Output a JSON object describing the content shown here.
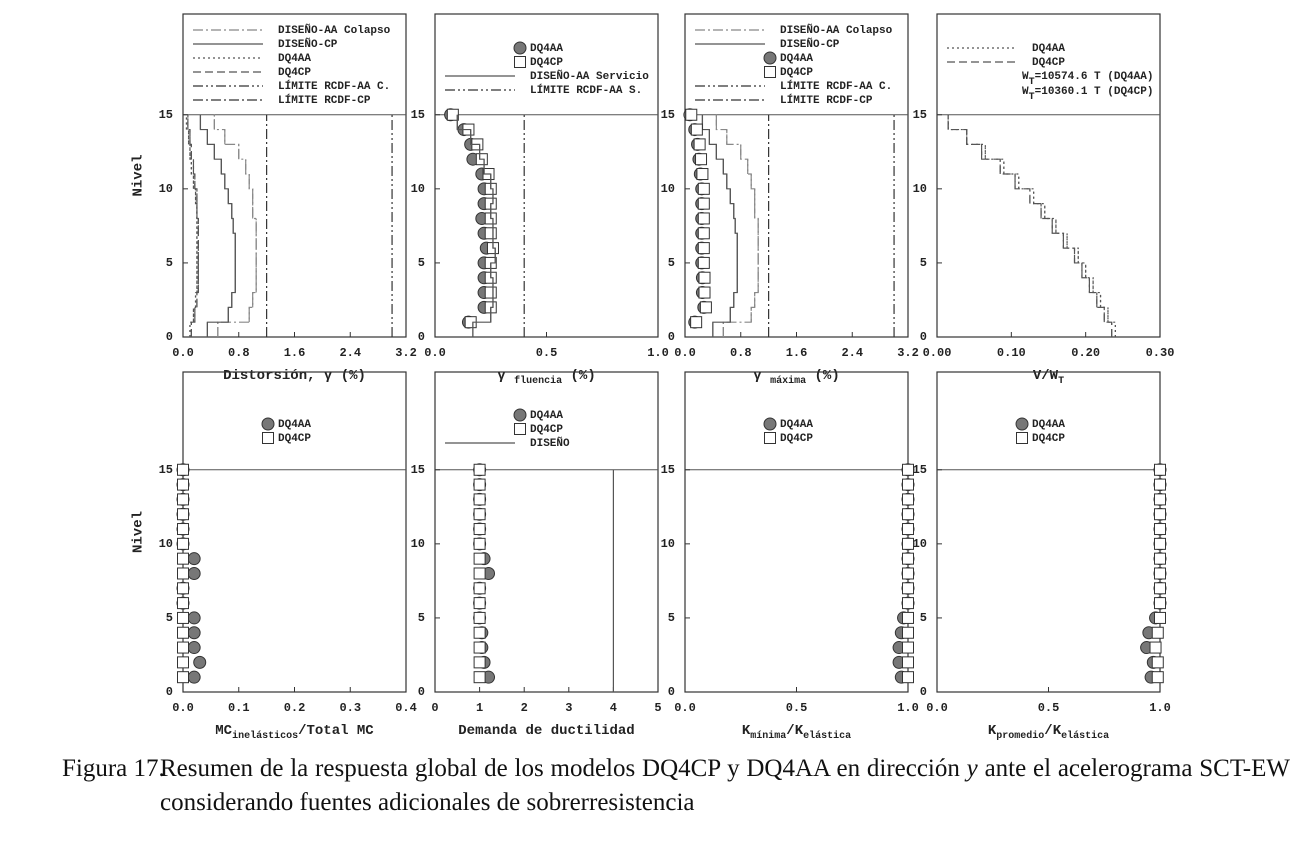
{
  "chart_data": [
    {
      "type": "profile",
      "ylabel": "Nivel",
      "roof": 15,
      "levels": [
        1,
        2,
        3,
        4,
        5,
        6,
        7,
        8,
        9,
        10,
        11,
        12,
        13,
        14,
        15
      ],
      "xlim": [
        0,
        3.2
      ],
      "xticks": [
        {
          "value": 0,
          "label": "0.0"
        },
        0.8,
        1.6,
        2.4,
        3.2
      ],
      "ylim": [
        0,
        21.8
      ],
      "yticks": [
        0,
        5,
        10,
        15
      ],
      "xlabel": [
        {
          "text": "Distorsión, γ (%)"
        }
      ],
      "series": [
        {
          "name": "DISEÑO-AA Colapso",
          "kind": "step",
          "line_style": "dashdot",
          "color": "#888888",
          "values": [
            0.5,
            0.95,
            1.0,
            1.05,
            1.05,
            1.05,
            1.05,
            1.05,
            1.0,
            1.0,
            0.95,
            0.9,
            0.8,
            0.6,
            0.45
          ]
        },
        {
          "name": "DISEÑO-CP",
          "kind": "step",
          "line_style": "solid",
          "color": "#555555",
          "values": [
            0.35,
            0.65,
            0.7,
            0.75,
            0.75,
            0.75,
            0.75,
            0.72,
            0.7,
            0.65,
            0.6,
            0.55,
            0.45,
            0.35,
            0.25
          ]
        },
        {
          "name": "DQ4AA",
          "kind": "step",
          "line_style": "dotted",
          "color": "#555555",
          "values": [
            0.1,
            0.15,
            0.18,
            0.2,
            0.2,
            0.2,
            0.2,
            0.2,
            0.2,
            0.18,
            0.15,
            0.12,
            0.1,
            0.08,
            0.05
          ]
        },
        {
          "name": "DQ4CP",
          "kind": "step",
          "line_style": "dashed",
          "color": "#555555",
          "values": [
            0.12,
            0.17,
            0.2,
            0.22,
            0.22,
            0.22,
            0.22,
            0.22,
            0.2,
            0.2,
            0.17,
            0.15,
            0.12,
            0.1,
            0.07
          ]
        },
        {
          "name": "LÍMITE RCDF-AA C.",
          "kind": "vline",
          "line_style": "dashdotdot",
          "color": "#333333",
          "value": 3.0
        },
        {
          "name": "LÍMITE RCDF-CP",
          "kind": "vline",
          "line_style": "dashdot",
          "color": "#333333",
          "value": 1.2
        }
      ]
    },
    {
      "type": "profile",
      "roof": 15,
      "levels": [
        1,
        2,
        3,
        4,
        5,
        6,
        7,
        8,
        9,
        10,
        11,
        12,
        13,
        14,
        15
      ],
      "xlim": [
        0,
        1
      ],
      "xticks": [
        {
          "value": 0,
          "label": "0.0"
        },
        0.5,
        {
          "value": 1,
          "label": "1.0"
        }
      ],
      "ylim": [
        0,
        21.8
      ],
      "yticks": [
        0,
        5,
        10,
        15
      ],
      "xlabel": [
        {
          "text": "γ "
        },
        {
          "text": "fluencia",
          "sub": true
        },
        {
          "text": " (%)"
        }
      ],
      "series": [
        {
          "name": "DQ4AA",
          "kind": "circle",
          "color": "#777777",
          "values": [
            0.15,
            0.22,
            0.22,
            0.22,
            0.22,
            0.23,
            0.22,
            0.21,
            0.22,
            0.22,
            0.21,
            0.17,
            0.16,
            0.13,
            0.07
          ]
        },
        {
          "name": "DQ4CP",
          "kind": "square",
          "color": "#ffffff",
          "values": [
            0.16,
            0.25,
            0.25,
            0.25,
            0.25,
            0.26,
            0.25,
            0.25,
            0.25,
            0.25,
            0.24,
            0.21,
            0.19,
            0.15,
            0.08
          ]
        },
        {
          "name": "DISEÑO-AA Servicio",
          "kind": "step",
          "line_style": "solid",
          "color": "#555555",
          "values": [
            0.17,
            0.25,
            0.26,
            0.26,
            0.25,
            0.27,
            0.26,
            0.26,
            0.25,
            0.26,
            0.25,
            0.22,
            0.2,
            0.16,
            0.1
          ]
        },
        {
          "name": "LÍMITE RCDF-AA S.",
          "kind": "vline",
          "line_style": "dashdotdot",
          "color": "#333333",
          "value": 0.4
        }
      ]
    },
    {
      "type": "profile",
      "roof": 15,
      "levels": [
        1,
        2,
        3,
        4,
        5,
        6,
        7,
        8,
        9,
        10,
        11,
        12,
        13,
        14,
        15
      ],
      "xlim": [
        0,
        3.2
      ],
      "xticks": [
        {
          "value": 0,
          "label": "0.0"
        },
        0.8,
        1.6,
        2.4,
        3.2
      ],
      "ylim": [
        0,
        21.8
      ],
      "yticks": [
        0,
        5,
        10,
        15
      ],
      "xlabel": [
        {
          "text": "γ "
        },
        {
          "text": "máxima",
          "sub": true
        },
        {
          "text": " (%)"
        }
      ],
      "series": [
        {
          "name": "DISEÑO-AA Colapso",
          "kind": "step",
          "line_style": "dashdot",
          "color": "#888888",
          "values": [
            0.55,
            0.95,
            1.0,
            1.05,
            1.05,
            1.05,
            1.05,
            1.05,
            1.0,
            1.0,
            0.95,
            0.9,
            0.8,
            0.6,
            0.45
          ]
        },
        {
          "name": "DISEÑO-CP",
          "kind": "step",
          "line_style": "solid",
          "color": "#555555",
          "values": [
            0.4,
            0.65,
            0.7,
            0.75,
            0.75,
            0.75,
            0.75,
            0.72,
            0.7,
            0.65,
            0.6,
            0.55,
            0.45,
            0.35,
            0.25
          ]
        },
        {
          "name": "DQ4AA",
          "kind": "circle",
          "color": "#777777",
          "values": [
            0.14,
            0.27,
            0.25,
            0.25,
            0.24,
            0.24,
            0.24,
            0.24,
            0.24,
            0.24,
            0.22,
            0.2,
            0.18,
            0.14,
            0.07
          ]
        },
        {
          "name": "DQ4CP",
          "kind": "square",
          "color": "#ffffff",
          "values": [
            0.16,
            0.3,
            0.28,
            0.28,
            0.27,
            0.27,
            0.27,
            0.27,
            0.27,
            0.27,
            0.25,
            0.23,
            0.21,
            0.17,
            0.09
          ]
        },
        {
          "name": "LÍMITE RCDF-AA C.",
          "kind": "vline",
          "line_style": "dashdotdot",
          "color": "#333333",
          "value": 3.0
        },
        {
          "name": "LÍMITE RCDF-CP",
          "kind": "vline",
          "line_style": "dashdot",
          "color": "#333333",
          "value": 1.2
        }
      ]
    },
    {
      "type": "profile",
      "roof": 15,
      "levels": [
        1,
        2,
        3,
        4,
        5,
        6,
        7,
        8,
        9,
        10,
        11,
        12,
        13,
        14,
        15
      ],
      "xlim": [
        0,
        0.3
      ],
      "xticks": [
        {
          "value": 0,
          "label": "0.00"
        },
        {
          "value": 0.1,
          "label": "0.10"
        },
        {
          "value": 0.2,
          "label": "0.20"
        },
        {
          "value": 0.3,
          "label": "0.30"
        }
      ],
      "ylim": [
        0,
        21.8
      ],
      "yticks": [
        0,
        5,
        10,
        15
      ],
      "xlabel": [
        {
          "text": "V/W"
        },
        {
          "text": "T",
          "sub": true
        }
      ],
      "annotations": [
        [
          {
            "text": "W"
          },
          {
            "text": "T",
            "sub": true
          },
          {
            "text": "=10574.6 T (DQ4AA)"
          }
        ],
        [
          {
            "text": "W"
          },
          {
            "text": "T",
            "sub": true
          },
          {
            "text": "=10360.1 T (DQ4CP)"
          }
        ]
      ],
      "series": [
        {
          "name": "DQ4AA",
          "kind": "step",
          "line_style": "dotted",
          "color": "#555555",
          "values": [
            0.24,
            0.23,
            0.22,
            0.21,
            0.2,
            0.19,
            0.175,
            0.16,
            0.145,
            0.13,
            0.11,
            0.09,
            0.065,
            0.04,
            0.015
          ]
        },
        {
          "name": "DQ4CP",
          "kind": "step",
          "line_style": "dashed",
          "color": "#555555",
          "values": [
            0.235,
            0.225,
            0.215,
            0.205,
            0.195,
            0.185,
            0.17,
            0.155,
            0.14,
            0.125,
            0.105,
            0.085,
            0.06,
            0.04,
            0.015
          ]
        }
      ]
    },
    {
      "type": "profile",
      "ylabel": "Nivel",
      "roof": 15,
      "levels": [
        1,
        2,
        3,
        4,
        5,
        6,
        7,
        8,
        9,
        10,
        11,
        12,
        13,
        14,
        15
      ],
      "xlim": [
        0,
        0.4
      ],
      "xticks": [
        {
          "value": 0,
          "label": "0.0"
        },
        0.1,
        0.2,
        0.3,
        0.4
      ],
      "ylim": [
        0,
        21.6
      ],
      "yticks": [
        0,
        5,
        10,
        15
      ],
      "xlabel": [
        {
          "text": "MC"
        },
        {
          "text": "inelásticos",
          "sub": true
        },
        {
          "text": "/Total MC"
        }
      ],
      "series": [
        {
          "name": "DQ4AA",
          "kind": "circle",
          "color": "#777777",
          "values": [
            0.02,
            0.03,
            0.02,
            0.02,
            0.02,
            0,
            0,
            0.02,
            0.02,
            0,
            0,
            0,
            0,
            0,
            0
          ]
        },
        {
          "name": "DQ4CP",
          "kind": "square",
          "color": "#ffffff",
          "values": [
            0,
            0,
            0,
            0,
            0,
            0,
            0,
            0,
            0,
            0,
            0,
            0,
            0,
            0,
            0
          ]
        }
      ]
    },
    {
      "type": "profile",
      "roof": 15,
      "levels": [
        1,
        2,
        3,
        4,
        5,
        6,
        7,
        8,
        9,
        10,
        11,
        12,
        13,
        14,
        15
      ],
      "xlim": [
        0,
        5
      ],
      "xticks": [
        0,
        1,
        2,
        3,
        4,
        5
      ],
      "ylim": [
        0,
        21.6
      ],
      "yticks": [
        0,
        5,
        10,
        15
      ],
      "xlabel": [
        {
          "text": "Demanda de ductilidad"
        }
      ],
      "series": [
        {
          "name": "DQ4AA",
          "kind": "circle",
          "color": "#777777",
          "values": [
            1.2,
            1.1,
            1.05,
            1.05,
            1.0,
            1.0,
            1.0,
            1.2,
            1.1,
            1.0,
            1.0,
            1.0,
            1.0,
            1.0,
            1.0
          ]
        },
        {
          "name": "DQ4CP",
          "kind": "square",
          "color": "#ffffff",
          "values": [
            1.0,
            1.0,
            1.0,
            1.0,
            1.0,
            1.0,
            1.0,
            1.0,
            1.0,
            1.0,
            1.0,
            1.0,
            1.0,
            1.0,
            1.0
          ]
        },
        {
          "name": "DISEÑO",
          "kind": "vline",
          "line_style": "solid",
          "color": "#555555",
          "value": 4
        }
      ]
    },
    {
      "type": "profile",
      "roof": 15,
      "levels": [
        1,
        2,
        3,
        4,
        5,
        6,
        7,
        8,
        9,
        10,
        11,
        12,
        13,
        14,
        15
      ],
      "xlim": [
        0,
        1
      ],
      "xticks": [
        {
          "value": 0,
          "label": "0.0"
        },
        0.5,
        {
          "value": 1,
          "label": "1.0"
        }
      ],
      "ylim": [
        0,
        21.6
      ],
      "yticks": [
        0,
        5,
        10,
        15
      ],
      "xlabel": [
        {
          "text": "K"
        },
        {
          "text": "mínima",
          "sub": true
        },
        {
          "text": "/K"
        },
        {
          "text": "elástica",
          "sub": true
        }
      ],
      "series": [
        {
          "name": "DQ4AA",
          "kind": "circle",
          "color": "#777777",
          "values": [
            0.97,
            0.96,
            0.96,
            0.97,
            0.98,
            1,
            1,
            1,
            1,
            1,
            1,
            1,
            1,
            1,
            1
          ]
        },
        {
          "name": "DQ4CP",
          "kind": "square",
          "color": "#ffffff",
          "values": [
            1,
            1,
            1,
            1,
            1,
            1,
            1,
            1,
            1,
            1,
            1,
            1,
            1,
            1,
            1
          ]
        }
      ]
    },
    {
      "type": "profile",
      "roof": 15,
      "levels": [
        1,
        2,
        3,
        4,
        5,
        6,
        7,
        8,
        9,
        10,
        11,
        12,
        13,
        14,
        15
      ],
      "xlim": [
        0,
        1
      ],
      "xticks": [
        {
          "value": 0,
          "label": "0.0"
        },
        0.5,
        {
          "value": 1,
          "label": "1.0"
        }
      ],
      "ylim": [
        0,
        21.6
      ],
      "yticks": [
        0,
        5,
        10,
        15
      ],
      "xlabel": [
        {
          "text": "K"
        },
        {
          "text": "promedio",
          "sub": true
        },
        {
          "text": "/K"
        },
        {
          "text": "elástica",
          "sub": true
        }
      ],
      "series": [
        {
          "name": "DQ4AA",
          "kind": "circle",
          "color": "#777777",
          "values": [
            0.96,
            0.97,
            0.94,
            0.95,
            0.98,
            1,
            1,
            1,
            1,
            1,
            1,
            1,
            1,
            1,
            1
          ]
        },
        {
          "name": "DQ4CP",
          "kind": "square",
          "color": "#ffffff",
          "values": [
            0.99,
            0.99,
            0.98,
            0.99,
            1,
            1,
            1,
            1,
            1,
            1,
            1,
            1,
            1,
            1,
            1
          ]
        }
      ]
    }
  ],
  "caption": {
    "label": "Figura 17.",
    "parts": [
      "Resumen de la respuesta global de los modelos DQ4CP y DQ4AA en dirección ",
      "y",
      " ante el acelerograma SCT-EW considerando fuentes adicionales de sobrerresistencia"
    ]
  }
}
